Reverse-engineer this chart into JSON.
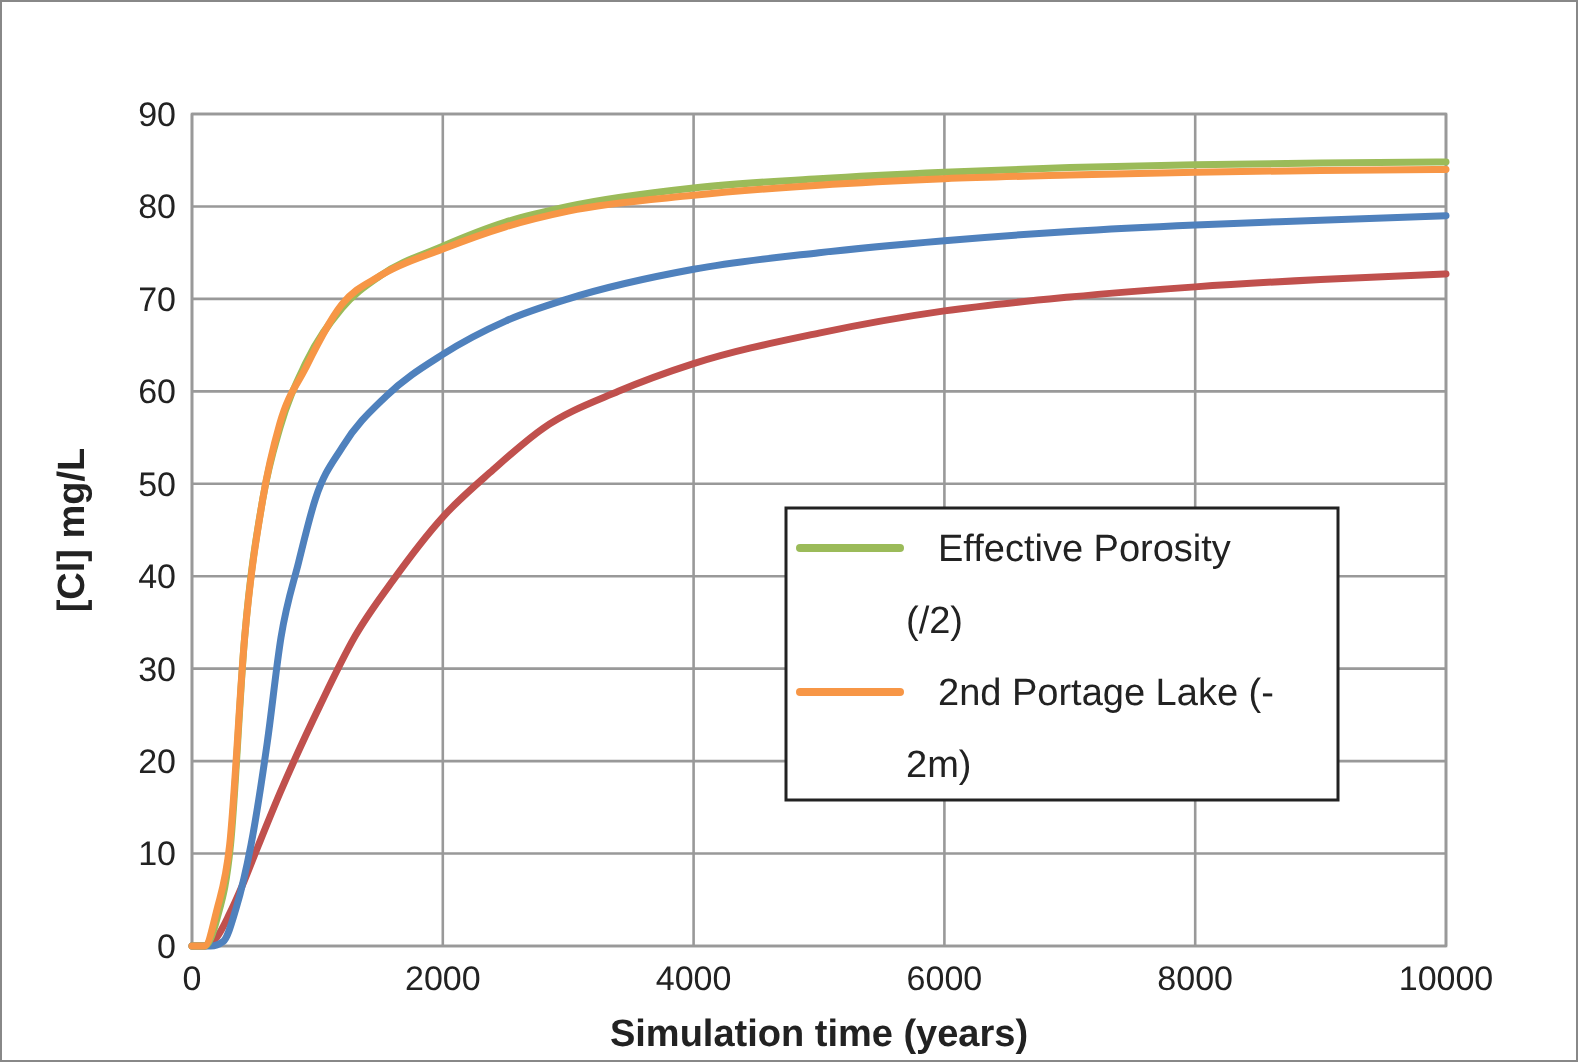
{
  "chart_data": {
    "type": "line",
    "xlabel": "Simulation time (years)",
    "ylabel": "[Cl] mg/L",
    "xlim": [
      0,
      10000
    ],
    "xticks": [
      0,
      2000,
      4000,
      6000,
      8000,
      10000
    ],
    "ylim": [
      0,
      90
    ],
    "yticks": [
      0,
      10,
      20,
      30,
      40,
      50,
      60,
      70,
      80,
      90
    ],
    "grid": true,
    "legend": "right",
    "marker": "none",
    "line_style": "solid",
    "series": [
      {
        "color": "#c0504d",
        "x": [
          0,
          100,
          200,
          300,
          400,
          530,
          700,
          1020,
          1300,
          1600,
          2000,
          2400,
          2800,
          3400,
          4000,
          5000,
          6000,
          7000,
          8000,
          9000,
          10000
        ],
        "values": [
          0,
          0,
          1,
          3.5,
          6.5,
          10.9,
          16.5,
          26,
          33.5,
          39.5,
          46.4,
          51.5,
          56,
          60,
          63,
          66.3,
          68.7,
          70.2,
          71.3,
          72.1,
          72.7
        ]
      },
      {
        "color": "#4f81bd",
        "x": [
          0,
          150,
          250,
          350,
          470,
          600,
          710,
          850,
          985,
          1200,
          1550,
          2000,
          2500,
          3000,
          4000,
          5000,
          6000,
          7000,
          8000,
          9000,
          10000
        ],
        "values": [
          0,
          0,
          0.5,
          4,
          10.9,
          22,
          33.4,
          41.5,
          48.4,
          54,
          59.5,
          64,
          67.6,
          70,
          73.2,
          75,
          76.3,
          77.3,
          78,
          78.5,
          79
        ]
      },
      {
        "name": "Effective Porosity\n(/2)",
        "color": "#9bbb59",
        "x": [
          0,
          100,
          200,
          307,
          420,
          565,
          700,
          905,
          1195,
          1500,
          2000,
          2500,
          3000,
          4000,
          5000,
          6000,
          7000,
          8000,
          9000,
          10000
        ],
        "values": [
          0,
          0,
          3,
          10.9,
          33.4,
          48.4,
          56,
          63,
          69,
          72.5,
          75.7,
          78.3,
          80,
          82,
          83,
          83.7,
          84.2,
          84.5,
          84.7,
          84.8
        ]
      },
      {
        "name": "2nd Portage Lake (-\n2m)",
        "color": "#f79646",
        "x": [
          0,
          100,
          200,
          300,
          420,
          565,
          700,
          905,
          1195,
          1500,
          2000,
          2500,
          3000,
          4000,
          5000,
          6000,
          7000,
          8000,
          9000,
          10000
        ],
        "values": [
          0,
          0,
          4,
          10.9,
          33.4,
          48.4,
          56.5,
          62.5,
          69.4,
          72.5,
          75.4,
          77.8,
          79.5,
          81.2,
          82.3,
          83,
          83.4,
          83.7,
          83.9,
          84
        ]
      }
    ]
  }
}
